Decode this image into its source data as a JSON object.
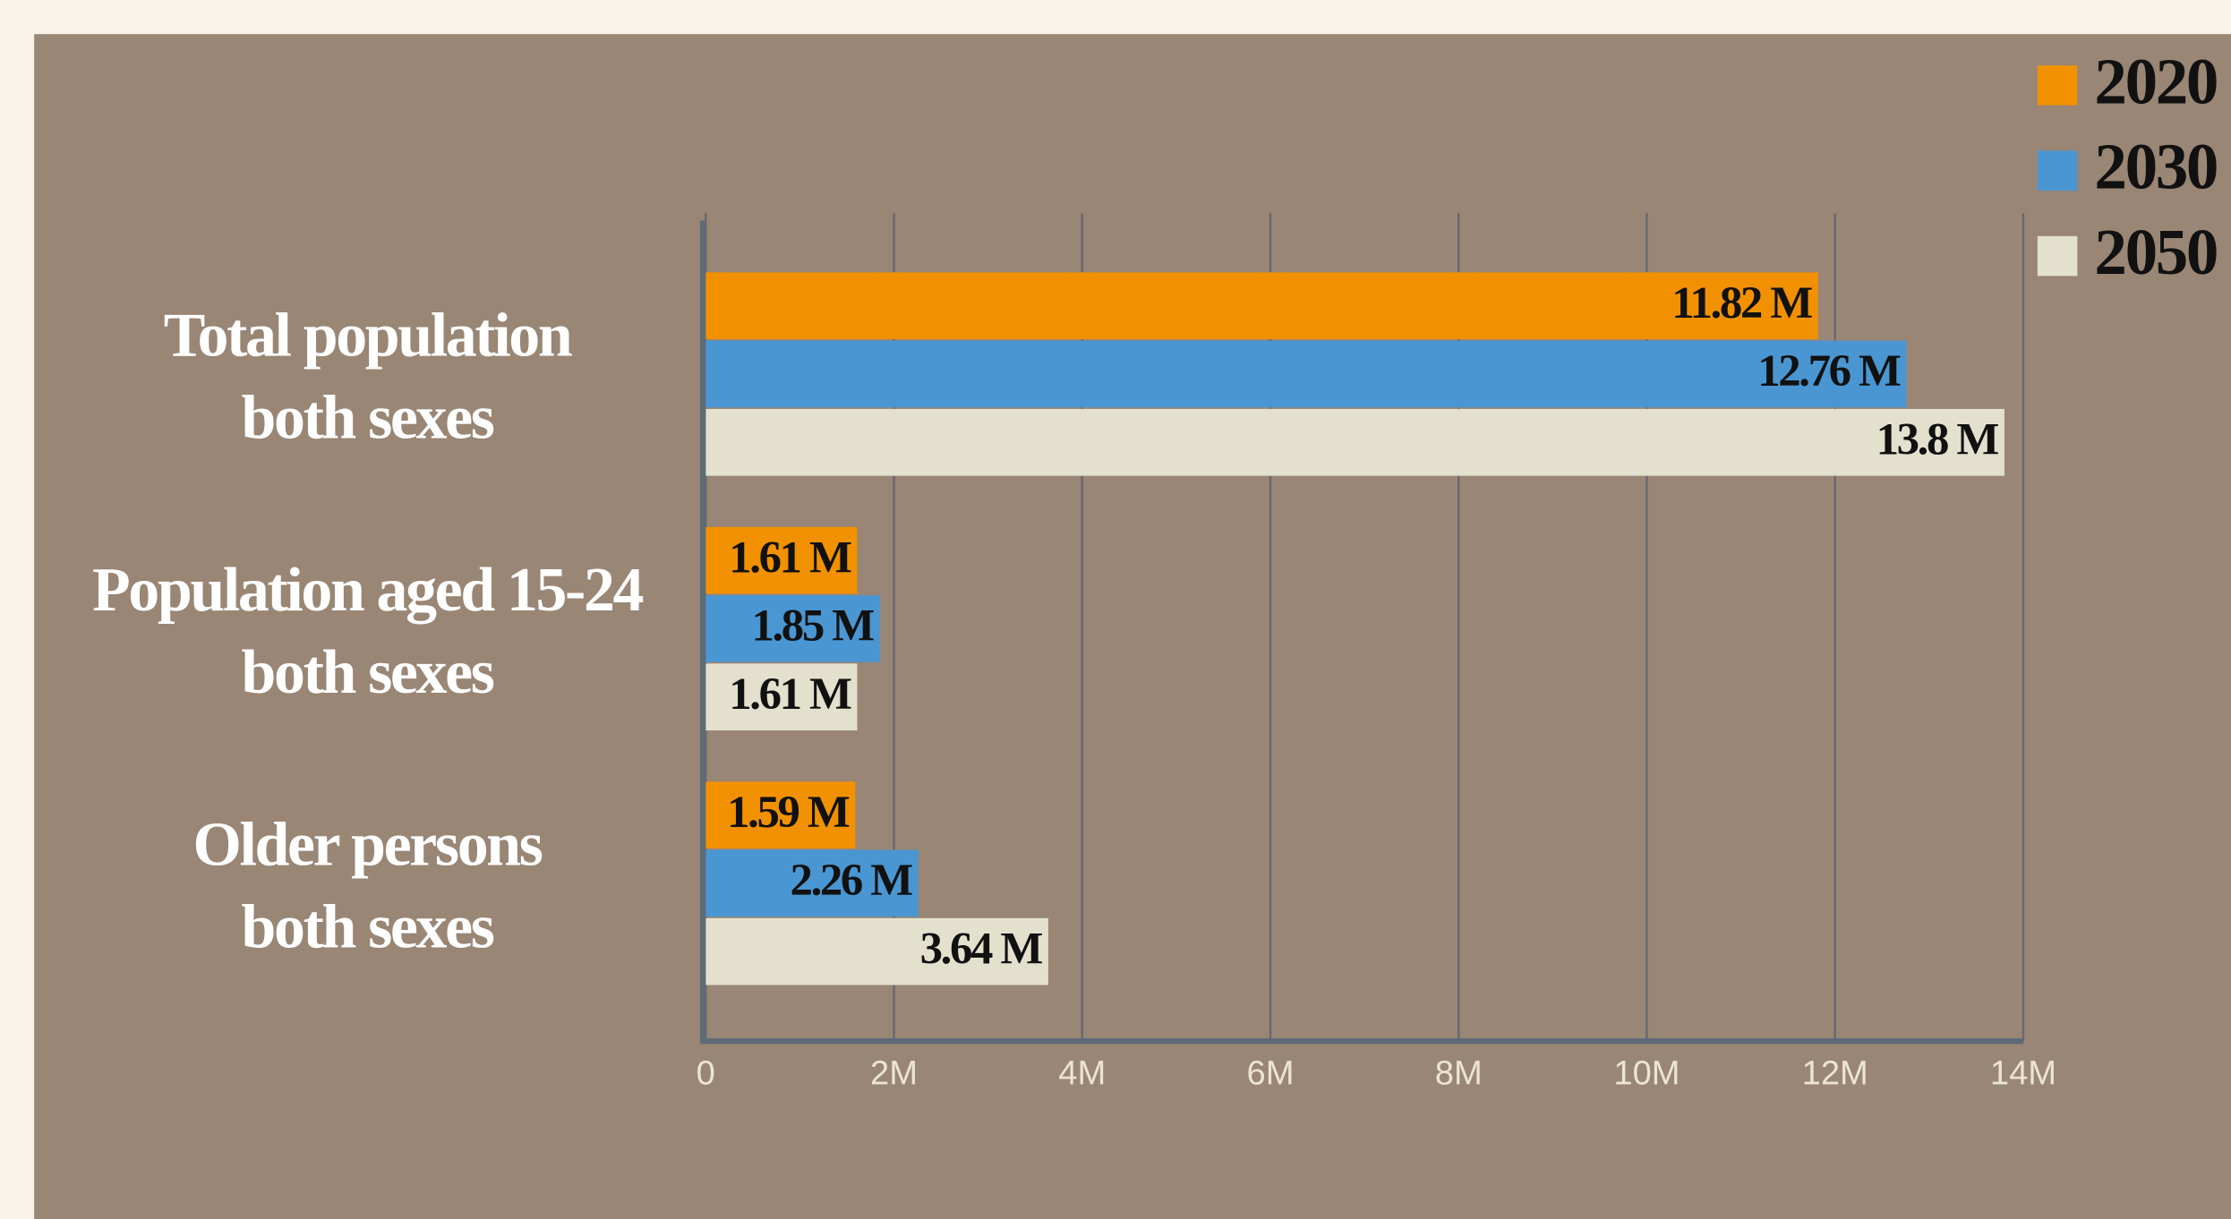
{
  "chart_data": {
    "type": "hbar",
    "categories": [
      "Total population\nboth sexes",
      "Population aged 15-24\nboth sexes",
      "Older persons\nboth sexes"
    ],
    "series": [
      {
        "name": "2020",
        "color": "#f29100",
        "values": [
          11820000,
          1610000,
          1590000
        ],
        "value_labels": [
          "11.82 M",
          "1.61 M",
          "1.59 M"
        ]
      },
      {
        "name": "2030",
        "color": "#4a96d2",
        "values": [
          12760000,
          1850000,
          2260000
        ],
        "value_labels": [
          "12.76 M",
          "1.85 M",
          "2.26 M"
        ]
      },
      {
        "name": "2050",
        "color": "#e3e1cd",
        "values": [
          13800000,
          1610000,
          3640000
        ],
        "value_labels": [
          "13.8 M",
          "1.61 M",
          "3.64 M"
        ]
      }
    ],
    "xlim": [
      0,
      14000000
    ],
    "xticks": [
      0,
      {
        "value": 2000000,
        "label": "2M"
      },
      {
        "value": 4000000,
        "label": "4M"
      },
      {
        "value": 6000000,
        "label": "6M"
      },
      {
        "value": 8000000,
        "label": "8M"
      },
      {
        "value": 10000000,
        "label": "10M"
      },
      {
        "value": 12000000,
        "label": "12M"
      },
      {
        "value": 14000000,
        "label": "14M"
      }
    ],
    "grid": true,
    "legend": "top-right"
  }
}
